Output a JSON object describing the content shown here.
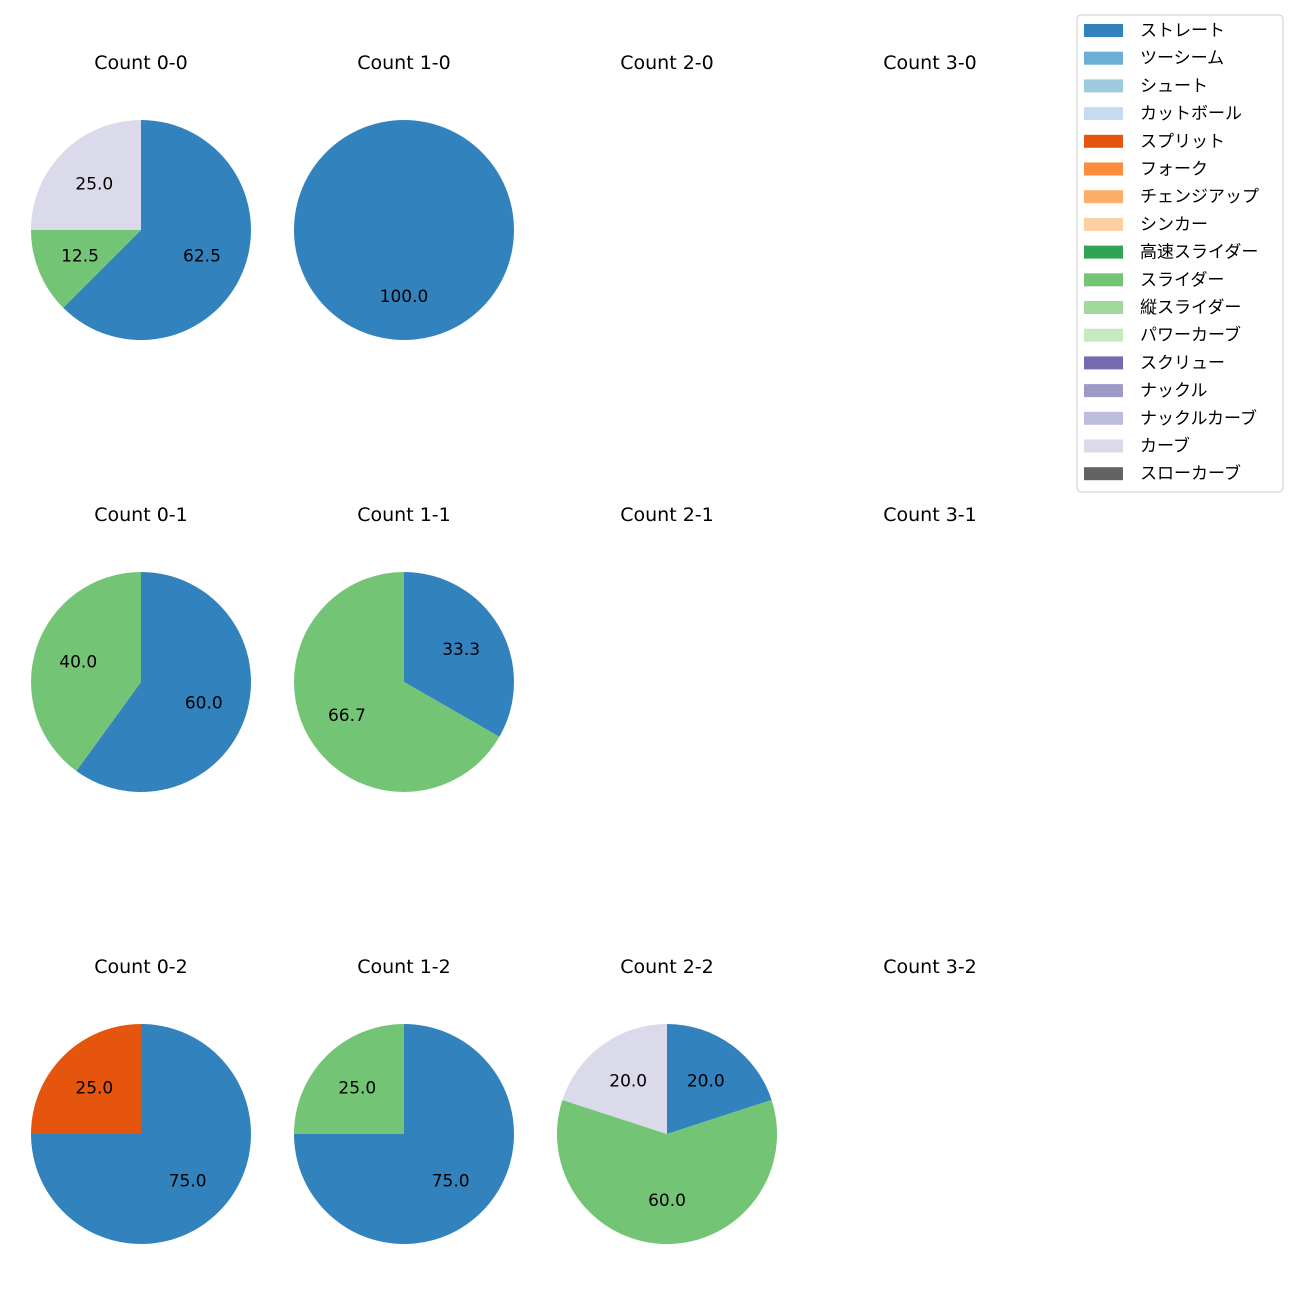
{
  "chart_data": {
    "type": "pie",
    "legend": {
      "placement": "top-right",
      "entries": [
        {
          "name": "ストレート",
          "color": "#3182bd"
        },
        {
          "name": "ツーシーム",
          "color": "#6baed6"
        },
        {
          "name": "シュート",
          "color": "#9ecae1"
        },
        {
          "name": "カットボール",
          "color": "#c6dbef"
        },
        {
          "name": "スプリット",
          "color": "#e6550d"
        },
        {
          "name": "フォーク",
          "color": "#fd8d3c"
        },
        {
          "name": "チェンジアップ",
          "color": "#fdae6b"
        },
        {
          "name": "シンカー",
          "color": "#fdd0a2"
        },
        {
          "name": "高速スライダー",
          "color": "#31a354"
        },
        {
          "name": "スライダー",
          "color": "#74c476"
        },
        {
          "name": "縦スライダー",
          "color": "#a1d99b"
        },
        {
          "name": "パワーカーブ",
          "color": "#c7e9c0"
        },
        {
          "name": "スクリュー",
          "color": "#756bb1"
        },
        {
          "name": "ナックル",
          "color": "#9e9ac8"
        },
        {
          "name": "ナックルカーブ",
          "color": "#bcbddc"
        },
        {
          "name": "カーブ",
          "color": "#dadaeb"
        },
        {
          "name": "スローカーブ",
          "color": "#636363"
        }
      ]
    },
    "panels": [
      {
        "title": "Count 0-0",
        "slices": [
          {
            "pitch": "ストレート",
            "value": 62.5,
            "label": "62.5"
          },
          {
            "pitch": "スライダー",
            "value": 12.5,
            "label": "12.5"
          },
          {
            "pitch": "カーブ",
            "value": 25.0,
            "label": "25.0"
          }
        ]
      },
      {
        "title": "Count 1-0",
        "slices": [
          {
            "pitch": "ストレート",
            "value": 100.0,
            "label": "100.0"
          }
        ]
      },
      {
        "title": "Count 2-0",
        "slices": []
      },
      {
        "title": "Count 3-0",
        "slices": []
      },
      {
        "title": "Count 0-1",
        "slices": [
          {
            "pitch": "ストレート",
            "value": 60.0,
            "label": "60.0"
          },
          {
            "pitch": "スライダー",
            "value": 40.0,
            "label": "40.0"
          }
        ]
      },
      {
        "title": "Count 1-1",
        "slices": [
          {
            "pitch": "ストレート",
            "value": 33.3,
            "label": "33.3"
          },
          {
            "pitch": "スライダー",
            "value": 66.7,
            "label": "66.7"
          }
        ]
      },
      {
        "title": "Count 2-1",
        "slices": []
      },
      {
        "title": "Count 3-1",
        "slices": []
      },
      {
        "title": "Count 0-2",
        "slices": [
          {
            "pitch": "ストレート",
            "value": 75.0,
            "label": "75.0"
          },
          {
            "pitch": "スプリット",
            "value": 25.0,
            "label": "25.0"
          }
        ]
      },
      {
        "title": "Count 1-2",
        "slices": [
          {
            "pitch": "ストレート",
            "value": 75.0,
            "label": "75.0"
          },
          {
            "pitch": "スライダー",
            "value": 25.0,
            "label": "25.0"
          }
        ]
      },
      {
        "title": "Count 2-2",
        "slices": [
          {
            "pitch": "ストレート",
            "value": 20.0,
            "label": "20.0"
          },
          {
            "pitch": "スライダー",
            "value": 60.0,
            "label": "60.0"
          },
          {
            "pitch": "カーブ",
            "value": 20.0,
            "label": "20.0"
          }
        ]
      },
      {
        "title": "Count 3-2",
        "slices": []
      }
    ]
  }
}
